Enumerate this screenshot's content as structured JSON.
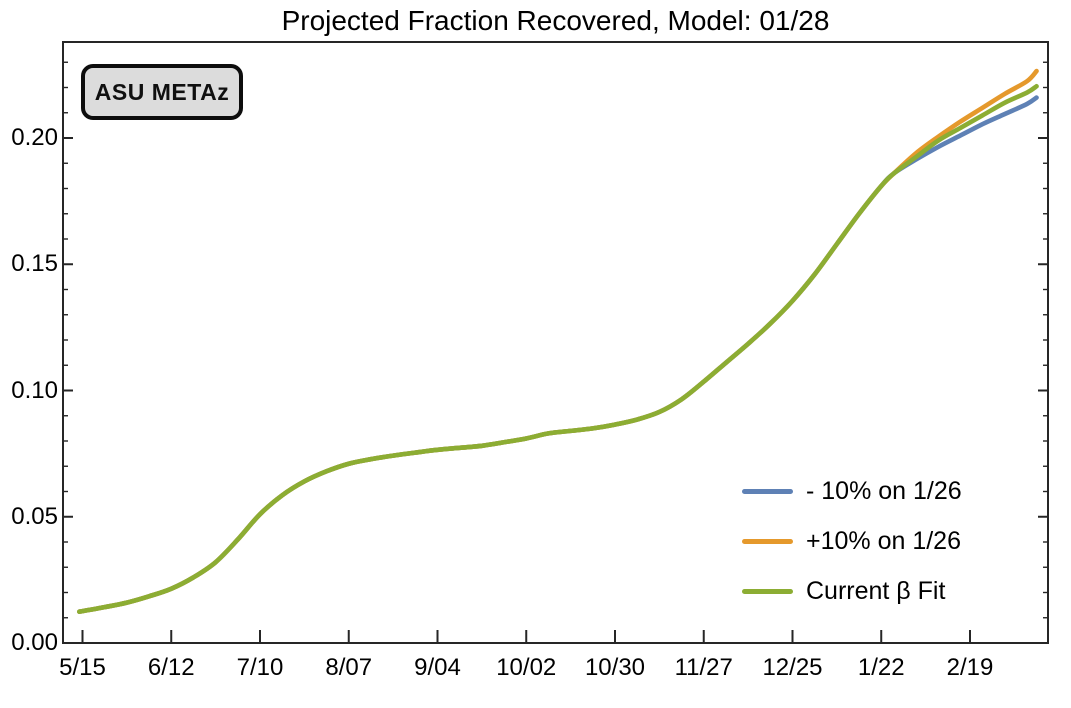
{
  "title": "Projected Fraction Recovered, Model: 01/28",
  "badge_label": "ASU METAz",
  "chart_data": {
    "type": "line",
    "title": "Projected Fraction Recovered, Model: 01/28",
    "xlabel": "",
    "ylabel": "",
    "grid": false,
    "frame": true,
    "legend_position": "lower-right",
    "x_axis": {
      "unit": "days since 5/15",
      "span_days": [
        -6,
        305
      ],
      "ticks": [
        {
          "day": 0,
          "label": "5/15"
        },
        {
          "day": 28,
          "label": "6/12"
        },
        {
          "day": 56,
          "label": "7/10"
        },
        {
          "day": 84,
          "label": "8/07"
        },
        {
          "day": 112,
          "label": "9/04"
        },
        {
          "day": 140,
          "label": "10/02"
        },
        {
          "day": 168,
          "label": "10/30"
        },
        {
          "day": 196,
          "label": "11/27"
        },
        {
          "day": 224,
          "label": "12/25"
        },
        {
          "day": 252,
          "label": "1/22"
        },
        {
          "day": 280,
          "label": "2/19"
        }
      ]
    },
    "y_axis": {
      "range": [
        0,
        0.238
      ],
      "minor_step": 0.01,
      "ticks": [
        {
          "value": 0.0,
          "label": "0.00"
        },
        {
          "value": 0.05,
          "label": "0.05"
        },
        {
          "value": 0.1,
          "label": "0.10"
        },
        {
          "value": 0.15,
          "label": "0.15"
        },
        {
          "value": 0.2,
          "label": "0.20"
        }
      ]
    },
    "divergence_day": 256,
    "series": [
      {
        "name": "- 10% on 1/26",
        "color": "#5E81B5",
        "points": [
          [
            -1,
            0.0124
          ],
          [
            7,
            0.0142
          ],
          [
            14,
            0.016
          ],
          [
            21,
            0.0185
          ],
          [
            28,
            0.0215
          ],
          [
            35,
            0.026
          ],
          [
            42,
            0.032
          ],
          [
            49,
            0.041
          ],
          [
            56,
            0.051
          ],
          [
            63,
            0.0585
          ],
          [
            70,
            0.064
          ],
          [
            77,
            0.068
          ],
          [
            84,
            0.071
          ],
          [
            91,
            0.0728
          ],
          [
            98,
            0.0742
          ],
          [
            105,
            0.0754
          ],
          [
            112,
            0.0765
          ],
          [
            119,
            0.0773
          ],
          [
            126,
            0.0781
          ],
          [
            133,
            0.0795
          ],
          [
            140,
            0.081
          ],
          [
            147,
            0.083
          ],
          [
            154,
            0.084
          ],
          [
            161,
            0.085
          ],
          [
            168,
            0.0865
          ],
          [
            175,
            0.0885
          ],
          [
            182,
            0.0915
          ],
          [
            189,
            0.0965
          ],
          [
            196,
            0.1035
          ],
          [
            203,
            0.111
          ],
          [
            210,
            0.1185
          ],
          [
            217,
            0.1265
          ],
          [
            224,
            0.1355
          ],
          [
            231,
            0.146
          ],
          [
            238,
            0.158
          ],
          [
            245,
            0.17
          ],
          [
            252,
            0.181
          ],
          [
            256,
            0.186
          ],
          [
            263,
            0.1915
          ],
          [
            270,
            0.1965
          ],
          [
            277,
            0.201
          ],
          [
            284,
            0.2055
          ],
          [
            291,
            0.2095
          ],
          [
            298,
            0.2135
          ],
          [
            301,
            0.216
          ]
        ]
      },
      {
        "name": "+10% on 1/26",
        "color": "#E5992C",
        "points": [
          [
            -1,
            0.0124
          ],
          [
            7,
            0.0142
          ],
          [
            14,
            0.016
          ],
          [
            21,
            0.0185
          ],
          [
            28,
            0.0215
          ],
          [
            35,
            0.026
          ],
          [
            42,
            0.032
          ],
          [
            49,
            0.041
          ],
          [
            56,
            0.051
          ],
          [
            63,
            0.0585
          ],
          [
            70,
            0.064
          ],
          [
            77,
            0.068
          ],
          [
            84,
            0.071
          ],
          [
            91,
            0.0728
          ],
          [
            98,
            0.0742
          ],
          [
            105,
            0.0754
          ],
          [
            112,
            0.0765
          ],
          [
            119,
            0.0773
          ],
          [
            126,
            0.0781
          ],
          [
            133,
            0.0795
          ],
          [
            140,
            0.081
          ],
          [
            147,
            0.083
          ],
          [
            154,
            0.084
          ],
          [
            161,
            0.085
          ],
          [
            168,
            0.0865
          ],
          [
            175,
            0.0885
          ],
          [
            182,
            0.0915
          ],
          [
            189,
            0.0965
          ],
          [
            196,
            0.1035
          ],
          [
            203,
            0.111
          ],
          [
            210,
            0.1185
          ],
          [
            217,
            0.1265
          ],
          [
            224,
            0.1355
          ],
          [
            231,
            0.146
          ],
          [
            238,
            0.158
          ],
          [
            245,
            0.17
          ],
          [
            252,
            0.181
          ],
          [
            256,
            0.186
          ],
          [
            263,
            0.194
          ],
          [
            270,
            0.2005
          ],
          [
            277,
            0.2065
          ],
          [
            284,
            0.212
          ],
          [
            291,
            0.2175
          ],
          [
            298,
            0.2225
          ],
          [
            301,
            0.2265
          ]
        ]
      },
      {
        "name": "Current β Fit",
        "color": "#8CAD33",
        "points": [
          [
            -1,
            0.0124
          ],
          [
            7,
            0.0142
          ],
          [
            14,
            0.016
          ],
          [
            21,
            0.0185
          ],
          [
            28,
            0.0215
          ],
          [
            35,
            0.026
          ],
          [
            42,
            0.032
          ],
          [
            49,
            0.041
          ],
          [
            56,
            0.051
          ],
          [
            63,
            0.0585
          ],
          [
            70,
            0.064
          ],
          [
            77,
            0.068
          ],
          [
            84,
            0.071
          ],
          [
            91,
            0.0728
          ],
          [
            98,
            0.0742
          ],
          [
            105,
            0.0754
          ],
          [
            112,
            0.0765
          ],
          [
            119,
            0.0773
          ],
          [
            126,
            0.0781
          ],
          [
            133,
            0.0795
          ],
          [
            140,
            0.081
          ],
          [
            147,
            0.083
          ],
          [
            154,
            0.084
          ],
          [
            161,
            0.085
          ],
          [
            168,
            0.0865
          ],
          [
            175,
            0.0885
          ],
          [
            182,
            0.0915
          ],
          [
            189,
            0.0965
          ],
          [
            196,
            0.1035
          ],
          [
            203,
            0.111
          ],
          [
            210,
            0.1185
          ],
          [
            217,
            0.1265
          ],
          [
            224,
            0.1355
          ],
          [
            231,
            0.146
          ],
          [
            238,
            0.158
          ],
          [
            245,
            0.17
          ],
          [
            252,
            0.181
          ],
          [
            256,
            0.186
          ],
          [
            263,
            0.1925
          ],
          [
            270,
            0.199
          ],
          [
            277,
            0.204
          ],
          [
            284,
            0.209
          ],
          [
            291,
            0.214
          ],
          [
            298,
            0.218
          ],
          [
            301,
            0.2205
          ]
        ]
      }
    ]
  }
}
